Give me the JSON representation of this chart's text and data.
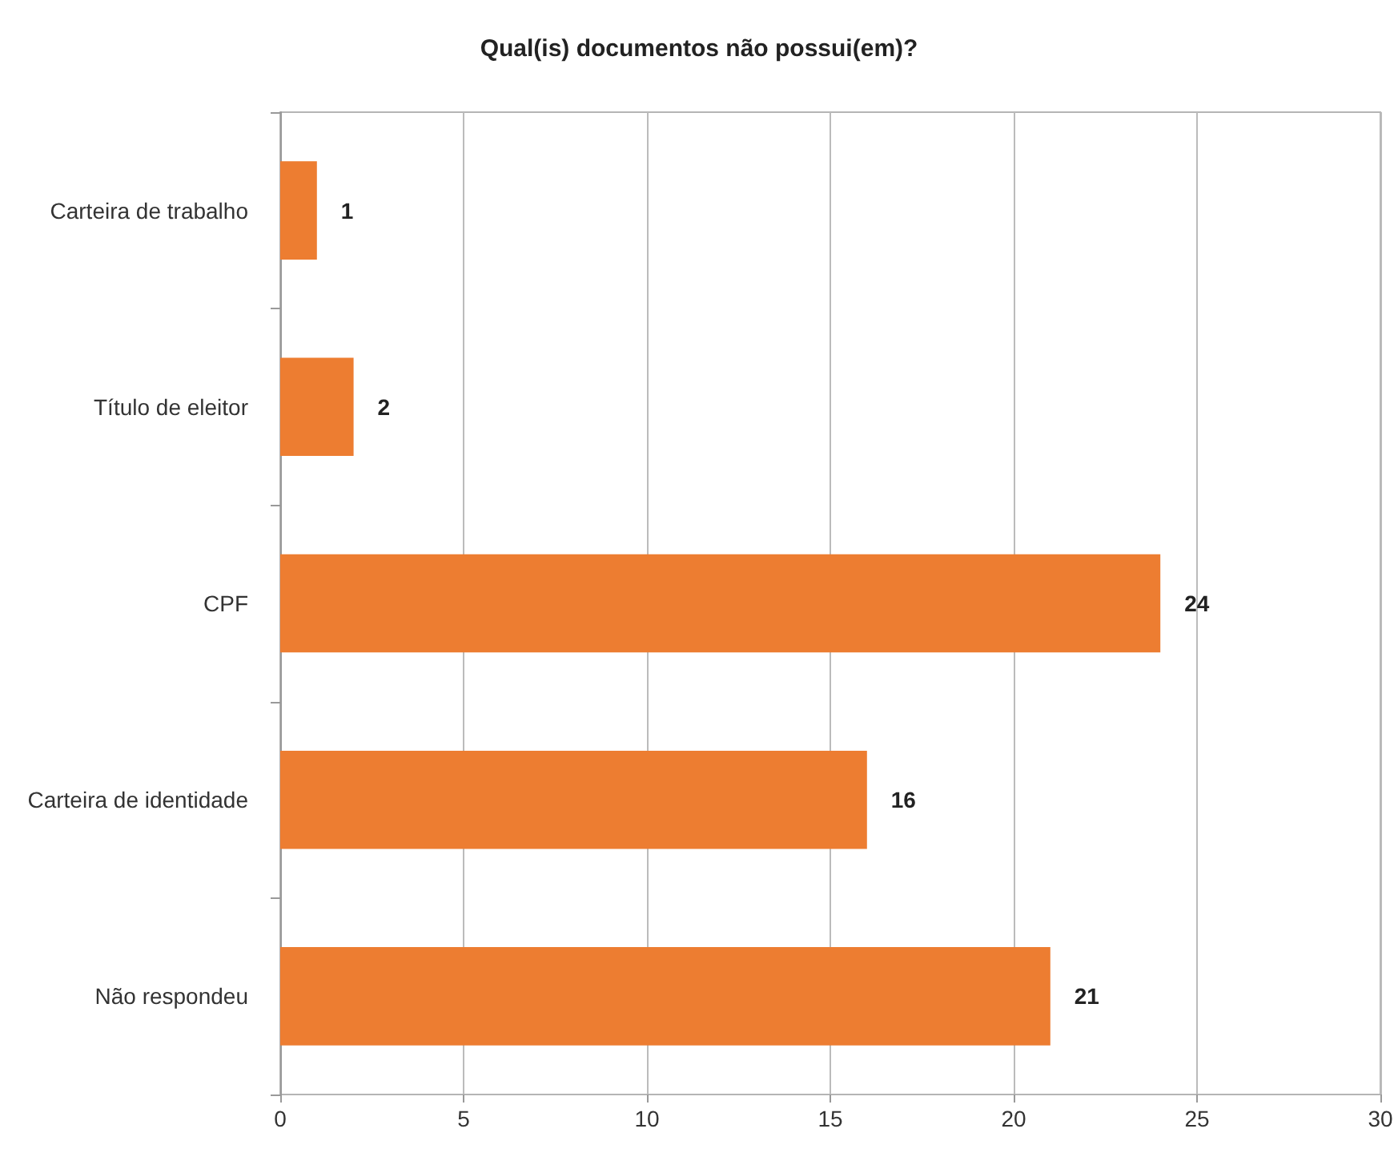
{
  "chart_data": {
    "type": "bar",
    "orientation": "horizontal",
    "title": "Qual(is) documentos não possui(em)?",
    "categories": [
      "Carteira de trabalho",
      "Título de eleitor",
      "CPF",
      "Carteira de identidade",
      "Não respondeu"
    ],
    "values": [
      1,
      2,
      24,
      16,
      21
    ],
    "color": "#ed7d31",
    "xlim": [
      0,
      30
    ],
    "xticks": [
      0,
      5,
      10,
      15,
      20,
      25,
      30
    ],
    "grid": "x",
    "data_labels": true
  }
}
